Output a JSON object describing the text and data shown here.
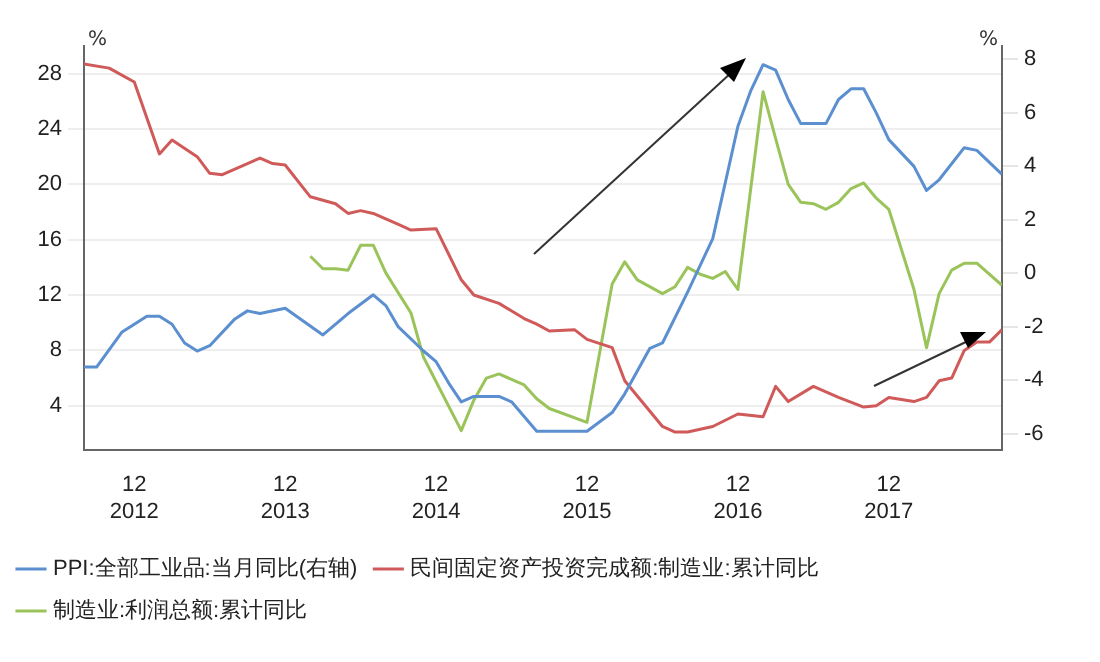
{
  "chart_data": {
    "type": "line",
    "ylabel": "%",
    "y2label": "%",
    "xlim": [
      "2012-08",
      "2018-09"
    ],
    "xticks": [
      {
        "value": "2012-12",
        "label": "12\n2012"
      },
      {
        "value": "2013-12",
        "label": "12\n2013"
      },
      {
        "value": "2014-12",
        "label": "12\n2014"
      },
      {
        "value": "2015-12",
        "label": "12\n2015"
      },
      {
        "value": "2016-12",
        "label": "12\n2016"
      },
      {
        "value": "2017-12",
        "label": "12\n2017"
      }
    ],
    "ylim": [
      0.8,
      30
    ],
    "yticks": [
      4,
      8,
      12,
      16,
      20,
      24,
      28
    ],
    "y2lim": [
      -6.6,
      8.5
    ],
    "y2ticks": [
      -6,
      -4,
      -2,
      0,
      2,
      4,
      6,
      8
    ],
    "grid": "y",
    "legend": "bottom",
    "line_style": "solid",
    "marker": "none",
    "series": [
      {
        "name": "PPI:全部工业品:当月同比(右轴)",
        "color": "#5b8fd0",
        "axis": "y2",
        "x": [
          "2012-08",
          "2012-09",
          "2012-11",
          "2012-12",
          "2013-01",
          "2013-02",
          "2013-03",
          "2013-04",
          "2013-05",
          "2013-06",
          "2013-08",
          "2013-09",
          "2013-10",
          "2013-12",
          "2014-03",
          "2014-05",
          "2014-07",
          "2014-08",
          "2014-09",
          "2014-11",
          "2014-12",
          "2015-01",
          "2015-02",
          "2015-03",
          "2015-05",
          "2015-06",
          "2015-08",
          "2015-09",
          "2015-12",
          "2016-02",
          "2016-03",
          "2016-05",
          "2016-06",
          "2016-08",
          "2016-10",
          "2016-12",
          "2017-01",
          "2017-02",
          "2017-03",
          "2017-04",
          "2017-05",
          "2017-07",
          "2017-08",
          "2017-09",
          "2017-10",
          "2017-11",
          "2017-12",
          "2018-02",
          "2018-03",
          "2018-04",
          "2018-06",
          "2018-07",
          "2018-09"
        ],
        "values": [
          -3.5,
          -3.5,
          -2.2,
          -1.9,
          -1.6,
          -1.6,
          -1.9,
          -2.6,
          -2.9,
          -2.7,
          -1.7,
          -1.4,
          -1.5,
          -1.3,
          -2.3,
          -1.5,
          -0.8,
          -1.2,
          -2.0,
          -2.9,
          -3.3,
          -4.1,
          -4.8,
          -4.6,
          -4.6,
          -4.8,
          -5.9,
          -5.9,
          -5.9,
          -5.2,
          -4.5,
          -2.8,
          -2.6,
          -0.7,
          1.3,
          5.5,
          6.8,
          7.8,
          7.6,
          6.5,
          5.6,
          5.6,
          6.5,
          6.9,
          6.9,
          6.0,
          5.0,
          4.0,
          3.1,
          3.5,
          4.7,
          4.6,
          3.7
        ]
      },
      {
        "name": "民间固定资产投资完成额:制造业:累计同比",
        "color": "#d05a5a",
        "x": [
          "2012-08",
          "2012-10",
          "2012-12",
          "2013-02",
          "2013-03",
          "2013-05",
          "2013-06",
          "2013-07",
          "2013-10",
          "2013-11",
          "2013-12",
          "2014-02",
          "2014-04",
          "2014-05",
          "2014-06",
          "2014-07",
          "2014-09",
          "2014-10",
          "2014-12",
          "2015-02",
          "2015-03",
          "2015-05",
          "2015-07",
          "2015-08",
          "2015-09",
          "2015-11",
          "2015-12",
          "2016-02",
          "2016-03",
          "2016-06",
          "2016-07",
          "2016-08",
          "2016-10",
          "2016-12",
          "2017-02",
          "2017-03",
          "2017-04",
          "2017-06",
          "2017-08",
          "2017-10",
          "2017-11",
          "2017-12",
          "2018-02",
          "2018-03",
          "2018-04",
          "2018-05",
          "2018-06",
          "2018-07",
          "2018-08",
          "2018-09"
        ],
        "values": [
          28.7,
          28.4,
          27.4,
          22.2,
          23.2,
          22.0,
          20.8,
          20.7,
          21.9,
          21.5,
          21.4,
          19.1,
          18.6,
          17.9,
          18.1,
          17.9,
          17.1,
          16.7,
          16.8,
          13.1,
          12.0,
          11.4,
          10.3,
          9.9,
          9.4,
          9.5,
          8.8,
          8.2,
          5.8,
          2.5,
          2.1,
          2.1,
          2.5,
          3.4,
          3.2,
          5.4,
          4.3,
          5.4,
          4.6,
          3.9,
          4.0,
          4.6,
          4.3,
          4.6,
          5.8,
          6.0,
          8.0,
          8.6,
          8.6,
          9.5
        ]
      },
      {
        "name": "制造业:利润总额:累计同比",
        "color": "#9ac45a",
        "x": [
          "2014-02",
          "2014-03",
          "2014-04",
          "2014-05",
          "2014-06",
          "2014-07",
          "2014-08",
          "2014-10",
          "2014-11",
          "2015-02",
          "2015-03",
          "2015-04",
          "2015-05",
          "2015-07",
          "2015-08",
          "2015-09",
          "2015-12",
          "2016-02",
          "2016-03",
          "2016-04",
          "2016-06",
          "2016-07",
          "2016-08",
          "2016-09",
          "2016-10",
          "2016-11",
          "2016-12",
          "2017-02",
          "2017-03",
          "2017-04",
          "2017-05",
          "2017-06",
          "2017-07",
          "2017-08",
          "2017-09",
          "2017-10",
          "2017-11",
          "2017-12",
          "2018-02",
          "2018-03",
          "2018-04",
          "2018-05",
          "2018-06",
          "2018-07",
          "2018-09"
        ],
        "values": [
          14.8,
          13.9,
          13.9,
          13.8,
          15.6,
          15.6,
          13.6,
          10.7,
          7.5,
          2.2,
          4.4,
          6.0,
          6.3,
          5.5,
          4.5,
          3.8,
          2.8,
          12.8,
          14.4,
          13.1,
          12.1,
          12.6,
          14.0,
          13.5,
          13.2,
          13.7,
          12.4,
          26.7,
          23.3,
          20.0,
          18.7,
          18.6,
          18.2,
          18.7,
          19.7,
          20.1,
          19.0,
          18.2,
          12.4,
          8.2,
          12.1,
          13.8,
          14.3,
          14.3,
          12.7
        ]
      }
    ]
  }
}
